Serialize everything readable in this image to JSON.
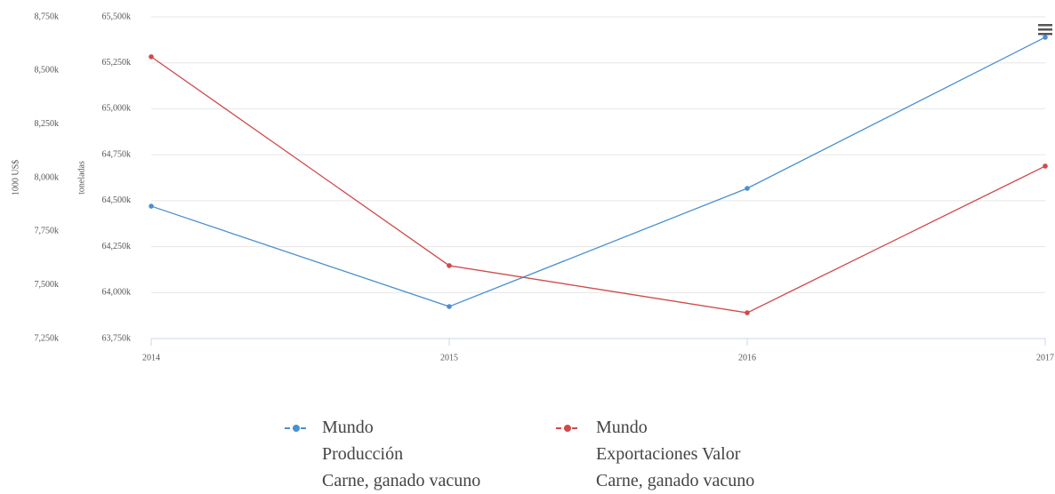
{
  "chart_data": {
    "type": "line",
    "categories": [
      "2014",
      "2015",
      "2016",
      "2017"
    ],
    "ylabel": "toneladas",
    "y2label": "1000 US$",
    "ylim": [
      63750000,
      65500000
    ],
    "yticks": [
      {
        "value": 63750000,
        "label": "63,750k"
      },
      {
        "value": 64000000,
        "label": "64,000k"
      },
      {
        "value": 64250000,
        "label": "64,250k"
      },
      {
        "value": 64500000,
        "label": "64,500k"
      },
      {
        "value": 64750000,
        "label": "64,750k"
      },
      {
        "value": 65000000,
        "label": "65,000k"
      },
      {
        "value": 65250000,
        "label": "65,250k"
      },
      {
        "value": 65500000,
        "label": "65,500k"
      }
    ],
    "y2lim": [
      7250000,
      8750000
    ],
    "y2ticks": [
      {
        "value": 7250000,
        "label": "7,250k"
      },
      {
        "value": 7500000,
        "label": "7,500k"
      },
      {
        "value": 7750000,
        "label": "7,750k"
      },
      {
        "value": 8000000,
        "label": "8,000k"
      },
      {
        "value": 8250000,
        "label": "8,250k"
      },
      {
        "value": 8500000,
        "label": "8,500k"
      },
      {
        "value": 8750000,
        "label": "8,750k"
      }
    ],
    "grid": true,
    "series": [
      {
        "name": "Mundo\nProducción\nCarne, ganado vacuno",
        "color": "#4a90d0",
        "values": [
          64470000,
          63924000,
          64567000,
          65389000
        ]
      },
      {
        "name": "Mundo\nExportaciones Valor\nCarne, ganado vacuno",
        "color": "#d04a4a",
        "axis": "y2",
        "values": [
          8564000,
          7590000,
          7370000,
          8054000
        ]
      }
    ]
  }
}
